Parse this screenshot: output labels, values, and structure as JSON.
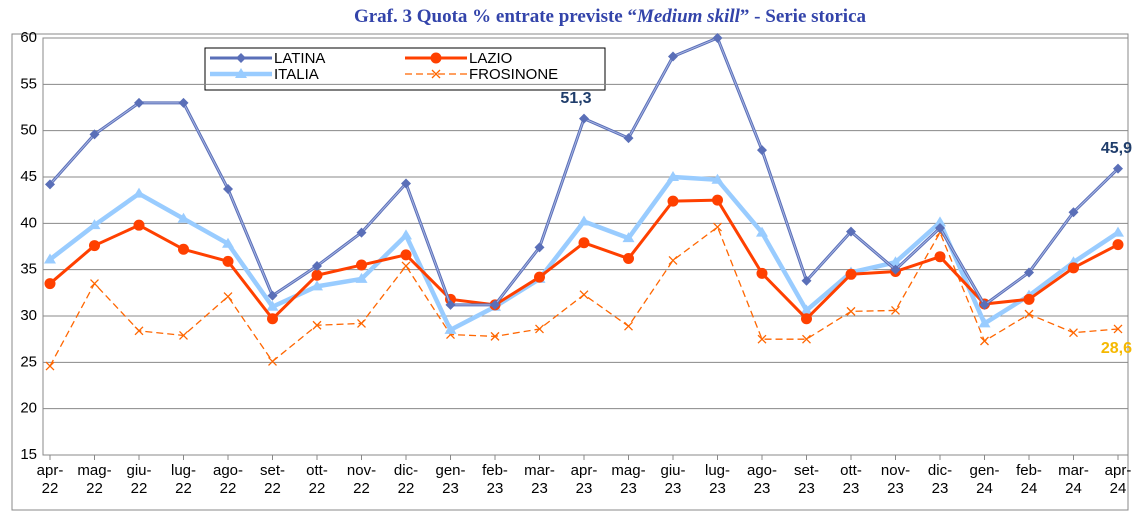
{
  "chart_data": {
    "type": "line",
    "title_parts": [
      "Graf. 3  Quota % entrate previste “",
      "Medium skill",
      "” - Serie storica"
    ],
    "categories": [
      "apr-22",
      "mag-22",
      "giu-22",
      "lug-22",
      "ago-22",
      "set-22",
      "ott-22",
      "nov-22",
      "dic-22",
      "gen-23",
      "feb-23",
      "mar-23",
      "apr-23",
      "mag-23",
      "giu-23",
      "lug-23",
      "ago-23",
      "set-23",
      "ott-23",
      "nov-23",
      "dic-23",
      "gen-24",
      "feb-24",
      "mar-24",
      "apr-24"
    ],
    "series": [
      {
        "name": "LATINA",
        "color": "#5a6fb8",
        "marker": "diamond",
        "label_color": "#1f3d6b",
        "values": [
          44.2,
          49.6,
          53,
          53,
          43.7,
          32.2,
          35.4,
          39,
          44.3,
          31.2,
          31.2,
          37.4,
          51.3,
          49.2,
          58,
          60,
          47.9,
          33.8,
          39.1,
          35,
          39.5,
          31.2,
          34.7,
          41.2,
          45.9
        ],
        "value_labels": [
          null,
          null,
          null,
          null,
          null,
          null,
          null,
          null,
          null,
          null,
          null,
          null,
          "51,3",
          null,
          null,
          null,
          null,
          null,
          null,
          null,
          null,
          null,
          null,
          null,
          "45,9"
        ]
      },
      {
        "name": "LAZIO",
        "color": "#ff4000",
        "marker": "circle",
        "values": [
          33.5,
          37.6,
          39.8,
          37.2,
          35.9,
          29.7,
          34.4,
          35.5,
          36.6,
          31.8,
          31.2,
          34.2,
          37.9,
          36.2,
          42.4,
          42.5,
          34.6,
          29.7,
          34.5,
          34.8,
          36.4,
          31.3,
          31.8,
          35.2,
          37.7
        ]
      },
      {
        "name": "ITALIA",
        "color": "#99ccff",
        "marker": "triangle",
        "values": [
          36.1,
          39.8,
          43.2,
          40.5,
          37.8,
          31,
          33.2,
          34,
          38.7,
          28.5,
          31,
          34,
          40.2,
          38.4,
          45,
          44.7,
          39,
          30.6,
          34.7,
          35.8,
          40.1,
          29.2,
          32.2,
          35.8,
          39
        ]
      },
      {
        "name": "FROSINONE",
        "color": "#ff6600",
        "marker": "x",
        "dashed": true,
        "label_color": "#f5b800",
        "values": [
          24.6,
          33.5,
          28.4,
          27.9,
          32.1,
          25.1,
          29,
          29.2,
          35.4,
          28,
          27.8,
          28.6,
          32.3,
          28.9,
          36,
          39.6,
          27.5,
          27.5,
          30.5,
          30.6,
          39,
          27.3,
          30.2,
          28.2,
          28.6
        ],
        "value_labels": [
          null,
          null,
          null,
          null,
          null,
          null,
          null,
          null,
          null,
          null,
          null,
          null,
          null,
          null,
          null,
          null,
          null,
          null,
          null,
          null,
          null,
          null,
          null,
          null,
          "28,6"
        ]
      }
    ],
    "ylim": [
      15,
      60
    ],
    "yticks": [
      15,
      20,
      25,
      30,
      35,
      40,
      45,
      50,
      55,
      60
    ],
    "grid": true
  }
}
